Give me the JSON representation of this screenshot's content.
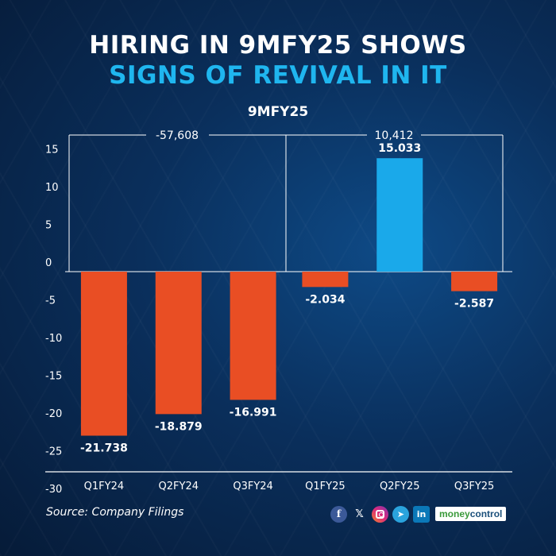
{
  "header": {
    "title_line1": "HIRING IN 9MFY25 SHOWS",
    "title_line2": "SIGNS OF REVIVAL IN IT",
    "subtitle": "9MFY25"
  },
  "colors": {
    "negative_bar": "#e94e24",
    "positive_bar": "#1aa9ea",
    "title_accent": "#1fb6ef"
  },
  "chart_data": {
    "type": "bar",
    "categories": [
      "Q1FY24",
      "Q2FY24",
      "Q3FY24",
      "Q1FY25",
      "Q2FY25",
      "Q3FY25"
    ],
    "values": [
      -21.738,
      -18.879,
      -16.991,
      -2.034,
      15.033,
      -2.587
    ],
    "value_labels": [
      "-21.738",
      "-18.879",
      "-16.991",
      "-2.034",
      "15.033",
      "-2.587"
    ],
    "yticks": [
      "15",
      "10",
      "5",
      "0",
      "-5",
      "-10",
      "-15",
      "-20",
      "-25",
      "-30"
    ],
    "ytick_values": [
      15,
      10,
      5,
      0,
      -5,
      -10,
      -15,
      -20,
      -25,
      -30
    ],
    "ylim": [
      -30,
      15
    ],
    "grid": false,
    "groups": [
      {
        "label": "-57,608",
        "categories": [
          "Q1FY24",
          "Q2FY24",
          "Q3FY24"
        ]
      },
      {
        "label": "10,412",
        "categories": [
          "Q1FY25",
          "Q2FY25",
          "Q3FY25"
        ]
      }
    ]
  },
  "footer": {
    "source": "Source: Company Filings",
    "social": {
      "facebook": "f",
      "x": "𝕏",
      "telegram": "➤",
      "linkedin": "in"
    },
    "brand_part1": "money",
    "brand_part2": "control"
  }
}
